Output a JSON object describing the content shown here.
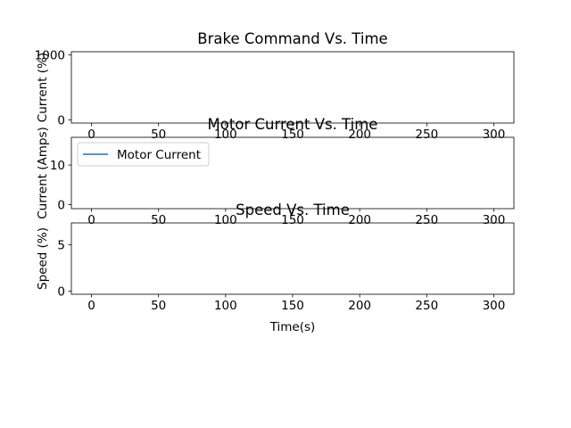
{
  "chart_data": [
    {
      "type": "line",
      "title": "Brake Command Vs. Time",
      "xlabel": "",
      "ylabel": "Current (%)",
      "xlim": [
        -15,
        315
      ],
      "ylim": [
        -50,
        1050
      ],
      "xticks": [
        0,
        50,
        100,
        150,
        200,
        250,
        300
      ],
      "yticks": [
        0,
        1000
      ],
      "grid": false,
      "series": []
    },
    {
      "type": "line",
      "title": "Motor Current Vs. Time",
      "xlabel": "",
      "ylabel": "Current (Amps)",
      "xlim": [
        -15,
        315
      ],
      "ylim": [
        -1,
        17
      ],
      "xticks": [
        0,
        50,
        100,
        150,
        200,
        250,
        300
      ],
      "yticks": [
        0,
        10
      ],
      "grid": false,
      "legend": "top-left",
      "series": [
        {
          "name": "Motor Current",
          "color": "#1f77b4",
          "x": [],
          "y": []
        }
      ]
    },
    {
      "type": "line",
      "title": "Speed Vs. Time",
      "xlabel": "Time(s)",
      "ylabel": "Speed (%)",
      "xlim": [
        -15,
        315
      ],
      "ylim": [
        -0.35,
        7.35
      ],
      "xticks": [
        0,
        50,
        100,
        150,
        200,
        250,
        300
      ],
      "yticks": [
        0,
        5
      ],
      "grid": false,
      "series": []
    }
  ]
}
